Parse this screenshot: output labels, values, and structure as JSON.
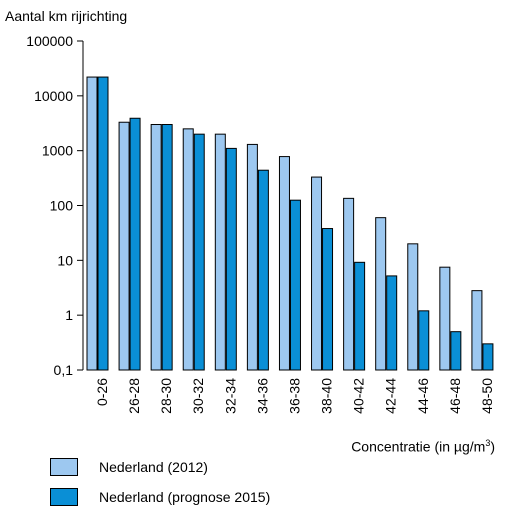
{
  "chart_data": {
    "type": "bar",
    "title": "",
    "ylabel": "Aantal km rijrichting",
    "xlabel": "Concentratie (in µg/m",
    "xlabel_sup": "3",
    "xlabel_suffix": ")",
    "yscale": "log",
    "ylim": [
      0.1,
      100000
    ],
    "yticks": [
      "0,1",
      "1",
      "10",
      "100",
      "1000",
      "10000",
      "100000"
    ],
    "categories": [
      "0-26",
      "26-28",
      "28-30",
      "30-32",
      "32-34",
      "34-36",
      "36-38",
      "38-40",
      "40-42",
      "42-44",
      "44-46",
      "46-48",
      "48-50"
    ],
    "series": [
      {
        "name": "Nederland (2012)",
        "color": "#9DC8F0",
        "values": [
          22000,
          3300,
          3000,
          2500,
          2000,
          1300,
          780,
          330,
          135,
          60,
          20,
          7.5,
          2.8
        ]
      },
      {
        "name": "Nederland (prognose 2015)",
        "color": "#0A8FD6",
        "values": [
          22000,
          3900,
          3000,
          2000,
          1100,
          440,
          125,
          38,
          9.2,
          5.2,
          1.2,
          0.5,
          0.3
        ]
      }
    ],
    "legend_position": "bottom-left",
    "grid": false
  }
}
